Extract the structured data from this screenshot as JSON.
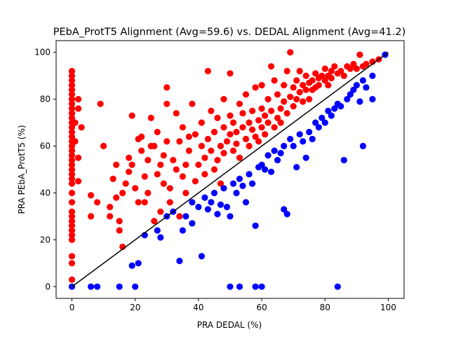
{
  "chart_data": {
    "type": "scatter",
    "title": "PEbA_ProtT5 Alignment (Avg=59.6) vs. DEDAL Alignment (Avg=41.2)",
    "xlabel": "PRA DEDAL (%)",
    "ylabel": "PRA PEbA_ProtT5 (%)",
    "xlim": [
      -5,
      105
    ],
    "ylim": [
      -5,
      105
    ],
    "xticks": [
      0,
      20,
      40,
      60,
      80,
      100
    ],
    "yticks": [
      0,
      20,
      40,
      60,
      80,
      100
    ],
    "grid": false,
    "legend": "none",
    "reference_line": {
      "x": [
        0,
        100
      ],
      "y": [
        0,
        100
      ],
      "color": "#000000"
    },
    "series": [
      {
        "color": "#ff0000",
        "points": [
          [
            0,
            92
          ],
          [
            0,
            90
          ],
          [
            0,
            88
          ],
          [
            0,
            86
          ],
          [
            0,
            84
          ],
          [
            0,
            82
          ],
          [
            0,
            80
          ],
          [
            0,
            78
          ],
          [
            0,
            76
          ],
          [
            0,
            74
          ],
          [
            0,
            72
          ],
          [
            0,
            70
          ],
          [
            0,
            68
          ],
          [
            0,
            66
          ],
          [
            0,
            64
          ],
          [
            0,
            62
          ],
          [
            0,
            60
          ],
          [
            0,
            58
          ],
          [
            0,
            56
          ],
          [
            0,
            54
          ],
          [
            0,
            52
          ],
          [
            0,
            50
          ],
          [
            0,
            48
          ],
          [
            0,
            46
          ],
          [
            0,
            44
          ],
          [
            0,
            40
          ],
          [
            0,
            36
          ],
          [
            0,
            32
          ],
          [
            0,
            30
          ],
          [
            0,
            28
          ],
          [
            0,
            26
          ],
          [
            0,
            24
          ],
          [
            0,
            22
          ],
          [
            0,
            20
          ],
          [
            0,
            13
          ],
          [
            0,
            10
          ],
          [
            0,
            3
          ],
          [
            1,
            70
          ],
          [
            1,
            62
          ],
          [
            2,
            80
          ],
          [
            2,
            76
          ],
          [
            2,
            55
          ],
          [
            2,
            45
          ],
          [
            3,
            68
          ],
          [
            6,
            30
          ],
          [
            6,
            39
          ],
          [
            8,
            36
          ],
          [
            9,
            78
          ],
          [
            10,
            60
          ],
          [
            12,
            34
          ],
          [
            13,
            46
          ],
          [
            14,
            52
          ],
          [
            14,
            38
          ],
          [
            15,
            28
          ],
          [
            15,
            24
          ],
          [
            16,
            17
          ],
          [
            17,
            44
          ],
          [
            18,
            55
          ],
          [
            18,
            49
          ],
          [
            19,
            73
          ],
          [
            20,
            42
          ],
          [
            21,
            36
          ],
          [
            21,
            63
          ],
          [
            22,
            58
          ],
          [
            22,
            64
          ],
          [
            23,
            47
          ],
          [
            24,
            40
          ],
          [
            24,
            54
          ],
          [
            25,
            72
          ],
          [
            26,
            60
          ],
          [
            26,
            28
          ],
          [
            27,
            66
          ],
          [
            28,
            32
          ],
          [
            28,
            52
          ],
          [
            29,
            44
          ],
          [
            30,
            78
          ],
          [
            30,
            62
          ],
          [
            30,
            85
          ],
          [
            31,
            36
          ],
          [
            32,
            54
          ],
          [
            33,
            74
          ],
          [
            34,
            62
          ],
          [
            34,
            30
          ],
          [
            35,
            47
          ],
          [
            35,
            68
          ],
          [
            36,
            52
          ],
          [
            36,
            40
          ],
          [
            37,
            58
          ],
          [
            38,
            78
          ],
          [
            39,
            65
          ],
          [
            39,
            45
          ],
          [
            40,
            52
          ],
          [
            41,
            60
          ],
          [
            41,
            70
          ],
          [
            42,
            48
          ],
          [
            42,
            55
          ],
          [
            43,
            63
          ],
          [
            43,
            92
          ],
          [
            44,
            75
          ],
          [
            44,
            58
          ],
          [
            45,
            50
          ],
          [
            45,
            66
          ],
          [
            46,
            72
          ],
          [
            46,
            54
          ],
          [
            47,
            60
          ],
          [
            47,
            44
          ],
          [
            48,
            68
          ],
          [
            48,
            80
          ],
          [
            48,
            57
          ],
          [
            49,
            62
          ],
          [
            50,
            65
          ],
          [
            50,
            73
          ],
          [
            50,
            91
          ],
          [
            51,
            58
          ],
          [
            51,
            70
          ],
          [
            52,
            66
          ],
          [
            52,
            61
          ],
          [
            53,
            78
          ],
          [
            53,
            55
          ],
          [
            54,
            68
          ],
          [
            54,
            74
          ],
          [
            55,
            63
          ],
          [
            55,
            82
          ],
          [
            56,
            70
          ],
          [
            56,
            60
          ],
          [
            57,
            67
          ],
          [
            57,
            75
          ],
          [
            58,
            64
          ],
          [
            58,
            85
          ],
          [
            59,
            71
          ],
          [
            59,
            62
          ],
          [
            60,
            68
          ],
          [
            60,
            76
          ],
          [
            60,
            86
          ],
          [
            61,
            73
          ],
          [
            61,
            65
          ],
          [
            62,
            70
          ],
          [
            62,
            80
          ],
          [
            63,
            94
          ],
          [
            63,
            75
          ],
          [
            64,
            68
          ],
          [
            64,
            88
          ],
          [
            65,
            72
          ],
          [
            65,
            82
          ],
          [
            66,
            76
          ],
          [
            66,
            70
          ],
          [
            67,
            79
          ],
          [
            67,
            86
          ],
          [
            68,
            74
          ],
          [
            68,
            92
          ],
          [
            69,
            81
          ],
          [
            69,
            100
          ],
          [
            70,
            77
          ],
          [
            70,
            85
          ],
          [
            71,
            88
          ],
          [
            71,
            80
          ],
          [
            72,
            83
          ],
          [
            72,
            92
          ],
          [
            73,
            86
          ],
          [
            73,
            79
          ],
          [
            74,
            90
          ],
          [
            74,
            84
          ],
          [
            75,
            87
          ],
          [
            75,
            80
          ],
          [
            76,
            88
          ],
          [
            76,
            84
          ],
          [
            77,
            91
          ],
          [
            77,
            85
          ],
          [
            78,
            89
          ],
          [
            78,
            86
          ],
          [
            79,
            90
          ],
          [
            80,
            88
          ],
          [
            80,
            93
          ],
          [
            81,
            90
          ],
          [
            81,
            86
          ],
          [
            82,
            92
          ],
          [
            82,
            89
          ],
          [
            83,
            94
          ],
          [
            84,
            91
          ],
          [
            85,
            92
          ],
          [
            86,
            90
          ],
          [
            87,
            94
          ],
          [
            88,
            93
          ],
          [
            89,
            95
          ],
          [
            90,
            93
          ],
          [
            91,
            99
          ],
          [
            92,
            94
          ],
          [
            93,
            95
          ],
          [
            95,
            96
          ],
          [
            97,
            97
          ],
          [
            12,
            30
          ],
          [
            16,
            40
          ],
          [
            19,
            52
          ],
          [
            23,
            36
          ],
          [
            25,
            60
          ],
          [
            27,
            48
          ],
          [
            29,
            56
          ],
          [
            31,
            42
          ],
          [
            33,
            50
          ],
          [
            37,
            64
          ]
        ]
      },
      {
        "color": "#0000ff",
        "points": [
          [
            0,
            0
          ],
          [
            6,
            0
          ],
          [
            8,
            0
          ],
          [
            15,
            0
          ],
          [
            20,
            0
          ],
          [
            19,
            9
          ],
          [
            21,
            10
          ],
          [
            23,
            22
          ],
          [
            27,
            24
          ],
          [
            28,
            21
          ],
          [
            30,
            30
          ],
          [
            32,
            32
          ],
          [
            34,
            11
          ],
          [
            35,
            24
          ],
          [
            36,
            30
          ],
          [
            38,
            27
          ],
          [
            38,
            36
          ],
          [
            40,
            34
          ],
          [
            41,
            13
          ],
          [
            42,
            38
          ],
          [
            43,
            33
          ],
          [
            44,
            36
          ],
          [
            45,
            40
          ],
          [
            46,
            31
          ],
          [
            47,
            35
          ],
          [
            48,
            42
          ],
          [
            49,
            34
          ],
          [
            50,
            30
          ],
          [
            50,
            0
          ],
          [
            51,
            44
          ],
          [
            52,
            40
          ],
          [
            53,
            46
          ],
          [
            53,
            0
          ],
          [
            54,
            43
          ],
          [
            55,
            36
          ],
          [
            56,
            48
          ],
          [
            57,
            44
          ],
          [
            58,
            0
          ],
          [
            58,
            26
          ],
          [
            59,
            51
          ],
          [
            60,
            52
          ],
          [
            60,
            0
          ],
          [
            61,
            50
          ],
          [
            62,
            56
          ],
          [
            63,
            49
          ],
          [
            64,
            58
          ],
          [
            65,
            54
          ],
          [
            66,
            57
          ],
          [
            67,
            60
          ],
          [
            67,
            33
          ],
          [
            68,
            31
          ],
          [
            69,
            63
          ],
          [
            70,
            60
          ],
          [
            71,
            51
          ],
          [
            72,
            65
          ],
          [
            73,
            62
          ],
          [
            74,
            55
          ],
          [
            75,
            66
          ],
          [
            76,
            63
          ],
          [
            77,
            70
          ],
          [
            78,
            68
          ],
          [
            79,
            72
          ],
          [
            80,
            70
          ],
          [
            81,
            75
          ],
          [
            82,
            73
          ],
          [
            83,
            76
          ],
          [
            84,
            0
          ],
          [
            84,
            78
          ],
          [
            85,
            77
          ],
          [
            86,
            54
          ],
          [
            87,
            80
          ],
          [
            88,
            82
          ],
          [
            89,
            84
          ],
          [
            90,
            86
          ],
          [
            91,
            79
          ],
          [
            92,
            60
          ],
          [
            92,
            88
          ],
          [
            93,
            85
          ],
          [
            95,
            80
          ],
          [
            95,
            90
          ],
          [
            99,
            99
          ]
        ]
      }
    ]
  }
}
